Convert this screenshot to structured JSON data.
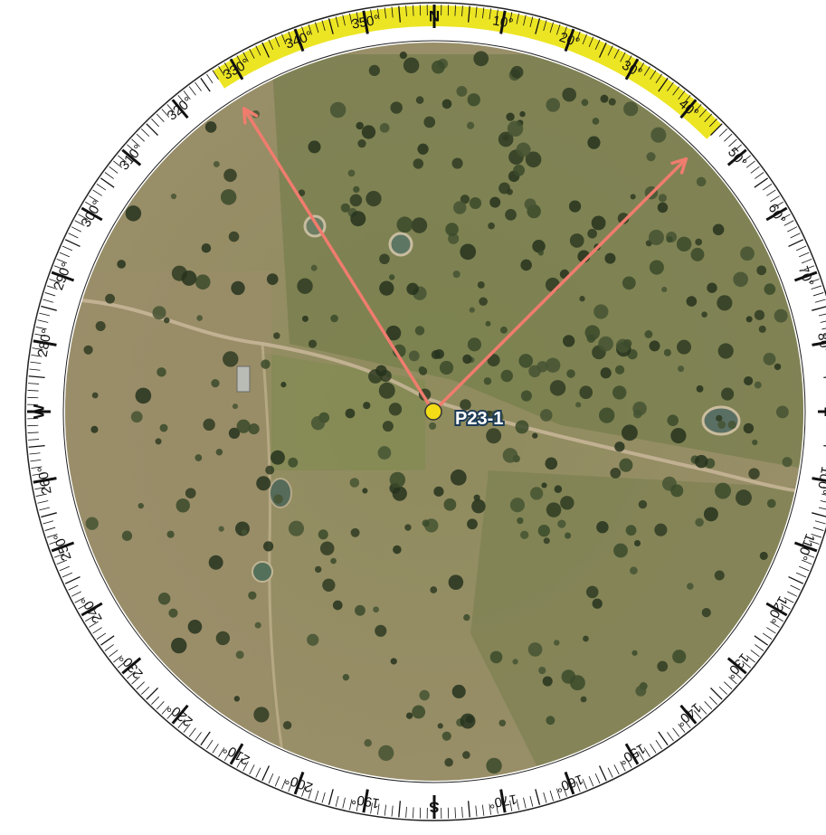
{
  "compass": {
    "cardinals": {
      "north": "N",
      "east": "E",
      "south": "S",
      "west": "W"
    },
    "degree_labels": [
      "10°",
      "20°",
      "30°",
      "40°",
      "50°",
      "60°",
      "70°",
      "80°",
      "100°",
      "110°",
      "120°",
      "130°",
      "140°",
      "150°",
      "160°",
      "170°",
      "190°",
      "200°",
      "210°",
      "220°",
      "230°",
      "240°",
      "250°",
      "260°",
      "280°",
      "290°",
      "300°",
      "310°",
      "320°",
      "330°",
      "340°",
      "350°"
    ],
    "highlight_arc_deg": {
      "start": 327,
      "end": 45
    },
    "highlight_color": "#ece524",
    "ring_color": "#ffffff",
    "tick_color": "#111111"
  },
  "site": {
    "label": "P23-1",
    "marker_color": "#f4dc16",
    "label_bg": "#1d3b55"
  },
  "view_rays": {
    "color": "#f07c6e",
    "bearings_deg": [
      328,
      45
    ]
  },
  "map": {
    "base_color": "#8e8a5c",
    "feature_names": [
      "paddock-pasture",
      "dirt-track",
      "farm-dam",
      "tree-cluster",
      "farm-shed"
    ]
  }
}
